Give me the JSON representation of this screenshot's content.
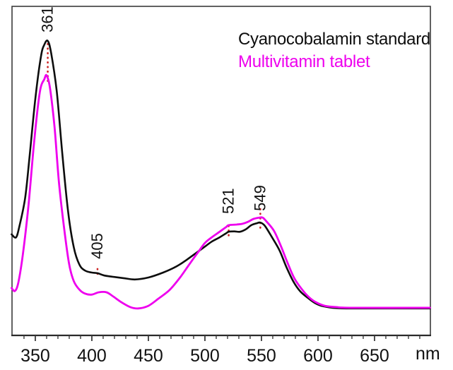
{
  "chart_data": {
    "type": "line",
    "title": "",
    "xlabel": "nm",
    "ylabel": "",
    "legend_position": "top-right",
    "grid": false,
    "x_axis": {
      "min": 329.4,
      "max": 699.4,
      "major_ticks": [
        350,
        400,
        450,
        500,
        550,
        600,
        650
      ],
      "minor_tick_step": 10,
      "minor_first": 340,
      "minor_last": 690
    },
    "y_axis": {
      "min": 0,
      "max": 1,
      "visible": false,
      "note": "relative absorbance, arbitrary units, no ticks shown"
    },
    "axis_color": "#3a3a3a",
    "tick_label_color": "#111111",
    "annotation_color": "#cc2222",
    "series": [
      {
        "name": "Cyanocobalamin standard",
        "color": "#0d0d0d",
        "width": 2.6,
        "points": [
          [
            329,
            0.307
          ],
          [
            333,
            0.298
          ],
          [
            336,
            0.333
          ],
          [
            341,
            0.418
          ],
          [
            345,
            0.547
          ],
          [
            350,
            0.719
          ],
          [
            355,
            0.848
          ],
          [
            358,
            0.884
          ],
          [
            361,
            0.895
          ],
          [
            364,
            0.858
          ],
          [
            369,
            0.74
          ],
          [
            374,
            0.547
          ],
          [
            379,
            0.376
          ],
          [
            384,
            0.268
          ],
          [
            389,
            0.215
          ],
          [
            394,
            0.197
          ],
          [
            400,
            0.191
          ],
          [
            405,
            0.189
          ],
          [
            411,
            0.182
          ],
          [
            419,
            0.178
          ],
          [
            428,
            0.174
          ],
          [
            438,
            0.17
          ],
          [
            450,
            0.176
          ],
          [
            463,
            0.191
          ],
          [
            475,
            0.21
          ],
          [
            484,
            0.23
          ],
          [
            494,
            0.255
          ],
          [
            500,
            0.27
          ],
          [
            506,
            0.285
          ],
          [
            513,
            0.298
          ],
          [
            519,
            0.311
          ],
          [
            521,
            0.315
          ],
          [
            526,
            0.316
          ],
          [
            531,
            0.315
          ],
          [
            536,
            0.322
          ],
          [
            541,
            0.335
          ],
          [
            546,
            0.341
          ],
          [
            549,
            0.343
          ],
          [
            553,
            0.333
          ],
          [
            559,
            0.3
          ],
          [
            566,
            0.258
          ],
          [
            572,
            0.208
          ],
          [
            578,
            0.165
          ],
          [
            584,
            0.135
          ],
          [
            591,
            0.114
          ],
          [
            597,
            0.099
          ],
          [
            603,
            0.09
          ],
          [
            613,
            0.084
          ],
          [
            625,
            0.082
          ],
          [
            650,
            0.082
          ],
          [
            699,
            0.082
          ]
        ]
      },
      {
        "name": "Multivitamin tablet",
        "color": "#ee00ee",
        "width": 2.8,
        "points": [
          [
            329,
            0.144
          ],
          [
            332,
            0.135
          ],
          [
            335,
            0.161
          ],
          [
            339,
            0.247
          ],
          [
            344,
            0.397
          ],
          [
            349,
            0.59
          ],
          [
            354,
            0.74
          ],
          [
            358,
            0.779
          ],
          [
            360,
            0.79
          ],
          [
            363,
            0.751
          ],
          [
            367,
            0.633
          ],
          [
            371,
            0.461
          ],
          [
            376,
            0.311
          ],
          [
            380,
            0.215
          ],
          [
            384,
            0.165
          ],
          [
            389,
            0.139
          ],
          [
            394,
            0.127
          ],
          [
            400,
            0.124
          ],
          [
            406,
            0.131
          ],
          [
            413,
            0.131
          ],
          [
            419,
            0.118
          ],
          [
            426,
            0.101
          ],
          [
            434,
            0.086
          ],
          [
            441,
            0.082
          ],
          [
            450,
            0.09
          ],
          [
            459,
            0.112
          ],
          [
            469,
            0.139
          ],
          [
            478,
            0.176
          ],
          [
            486,
            0.215
          ],
          [
            494,
            0.253
          ],
          [
            500,
            0.281
          ],
          [
            506,
            0.298
          ],
          [
            513,
            0.315
          ],
          [
            519,
            0.33
          ],
          [
            521,
            0.335
          ],
          [
            528,
            0.337
          ],
          [
            533,
            0.339
          ],
          [
            538,
            0.345
          ],
          [
            543,
            0.354
          ],
          [
            548,
            0.358
          ],
          [
            551,
            0.358
          ],
          [
            554,
            0.348
          ],
          [
            561,
            0.318
          ],
          [
            567,
            0.273
          ],
          [
            573,
            0.221
          ],
          [
            579,
            0.174
          ],
          [
            586,
            0.139
          ],
          [
            592,
            0.116
          ],
          [
            598,
            0.101
          ],
          [
            606,
            0.09
          ],
          [
            616,
            0.086
          ],
          [
            630,
            0.084
          ],
          [
            699,
            0.084
          ]
        ]
      }
    ],
    "annotations": [
      {
        "label": "361",
        "nm": 361,
        "marker_top": 0.886,
        "marker_bottom": 0.766,
        "label_anchor": 0.921
      },
      {
        "label": "405",
        "nm": 405,
        "marker_top": 0.202,
        "marker_bottom": 0.178,
        "label_anchor": 0.232
      },
      {
        "label": "521",
        "nm": 521,
        "marker_top": 0.333,
        "marker_bottom": 0.303,
        "label_anchor": 0.369
      },
      {
        "label": "549",
        "nm": 549,
        "marker_top": 0.384,
        "marker_bottom": 0.326,
        "label_anchor": 0.378
      }
    ]
  }
}
